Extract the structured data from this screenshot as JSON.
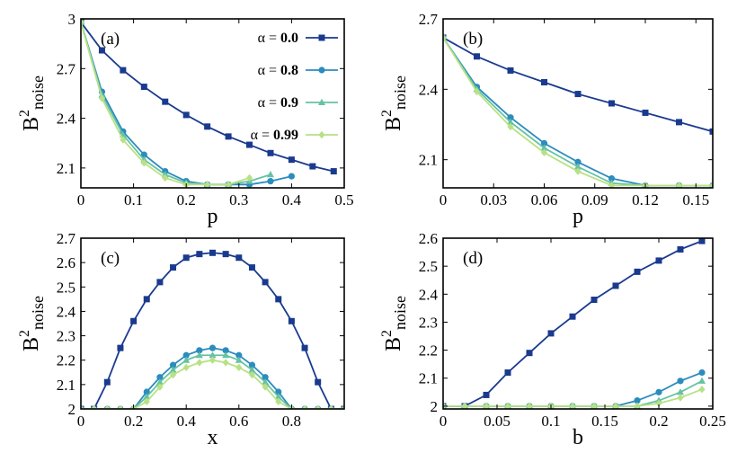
{
  "series_meta": [
    {
      "name": "α = 0.0",
      "color": "#1a3a8f",
      "marker": "square"
    },
    {
      "name": "α = 0.8",
      "color": "#2b8cbe",
      "marker": "circle"
    },
    {
      "name": "α = 0.9",
      "color": "#66c2a4",
      "marker": "triangle"
    },
    {
      "name": "α = 0.99",
      "color": "#b8e186",
      "marker": "diamond"
    }
  ],
  "chart_data": [
    {
      "type": "line",
      "panel_label": "(a)",
      "xlabel": "p",
      "ylabel": "B²noise",
      "xlim": [
        0,
        0.5
      ],
      "ylim": [
        1.98,
        3.0
      ],
      "xticks": [
        0,
        0.1,
        0.2,
        0.3,
        0.4,
        0.5
      ],
      "xticklabels": [
        "0",
        "0.1",
        "0.2",
        "0.3",
        "0.4",
        "0.5"
      ],
      "yticks": [
        2.1,
        2.4,
        2.7,
        3.0
      ],
      "yticklabels": [
        "2.1",
        "2.4",
        "2.7",
        "3"
      ],
      "legend": "top-right",
      "series": [
        {
          "name": "α = 0.0",
          "x": [
            0,
            0.04,
            0.08,
            0.12,
            0.16,
            0.2,
            0.24,
            0.28,
            0.32,
            0.36,
            0.4,
            0.44,
            0.48
          ],
          "y": [
            2.98,
            2.81,
            2.69,
            2.59,
            2.5,
            2.42,
            2.35,
            2.29,
            2.24,
            2.19,
            2.15,
            2.11,
            2.08
          ]
        },
        {
          "name": "α = 0.8",
          "x": [
            0,
            0.04,
            0.08,
            0.12,
            0.16,
            0.2,
            0.24,
            0.28,
            0.32,
            0.36,
            0.4
          ],
          "y": [
            2.98,
            2.56,
            2.32,
            2.18,
            2.08,
            2.02,
            2.0,
            2.0,
            2.0,
            2.02,
            2.05
          ]
        },
        {
          "name": "α = 0.9",
          "x": [
            0,
            0.04,
            0.08,
            0.12,
            0.16,
            0.2,
            0.24,
            0.28,
            0.32,
            0.36
          ],
          "y": [
            2.98,
            2.54,
            2.3,
            2.15,
            2.06,
            2.01,
            2.0,
            2.0,
            2.02,
            2.06
          ]
        },
        {
          "name": "α = 0.99",
          "x": [
            0,
            0.04,
            0.08,
            0.12,
            0.16,
            0.2,
            0.24,
            0.28,
            0.32
          ],
          "y": [
            2.98,
            2.52,
            2.27,
            2.13,
            2.04,
            2.0,
            2.0,
            2.0,
            2.04
          ]
        }
      ]
    },
    {
      "type": "line",
      "panel_label": "(b)",
      "xlabel": "p",
      "ylabel": "B²noise",
      "xlim": [
        0,
        0.16
      ],
      "ylim": [
        1.98,
        2.7
      ],
      "xticks": [
        0,
        0.03,
        0.06,
        0.09,
        0.12,
        0.15
      ],
      "xticklabels": [
        "0",
        "0.03",
        "0.06",
        "0.09",
        "0.12",
        "0.15"
      ],
      "yticks": [
        2.1,
        2.4,
        2.7
      ],
      "yticklabels": [
        "2.1",
        "2.4",
        "2.7"
      ],
      "series": [
        {
          "name": "α = 0.0",
          "x": [
            0,
            0.02,
            0.04,
            0.06,
            0.08,
            0.1,
            0.12,
            0.14,
            0.16
          ],
          "y": [
            2.62,
            2.54,
            2.48,
            2.43,
            2.38,
            2.34,
            2.3,
            2.26,
            2.22
          ]
        },
        {
          "name": "α = 0.8",
          "x": [
            0,
            0.02,
            0.04,
            0.06,
            0.08,
            0.1,
            0.12,
            0.14,
            0.16
          ],
          "y": [
            2.62,
            2.41,
            2.28,
            2.17,
            2.09,
            2.02,
            1.99,
            1.99,
            1.99
          ]
        },
        {
          "name": "α = 0.9",
          "x": [
            0,
            0.02,
            0.04,
            0.06,
            0.08,
            0.1,
            0.12,
            0.14,
            0.16
          ],
          "y": [
            2.62,
            2.4,
            2.26,
            2.15,
            2.07,
            2.0,
            1.99,
            1.99,
            1.99
          ]
        },
        {
          "name": "α = 0.99",
          "x": [
            0,
            0.02,
            0.04,
            0.06,
            0.08,
            0.1,
            0.12,
            0.14,
            0.16
          ],
          "y": [
            2.62,
            2.39,
            2.24,
            2.13,
            2.05,
            1.99,
            1.99,
            1.99,
            1.99
          ]
        }
      ]
    },
    {
      "type": "line",
      "panel_label": "(c)",
      "xlabel": "x",
      "ylabel": "B²noise",
      "xlim": [
        0,
        1.0
      ],
      "ylim": [
        2.0,
        2.7
      ],
      "xticks": [
        0,
        0.2,
        0.4,
        0.6,
        0.8
      ],
      "xticklabels": [
        "0",
        "0.2",
        "0.4",
        "0.6",
        "0.8"
      ],
      "yticks": [
        2.0,
        2.1,
        2.2,
        2.3,
        2.4,
        2.5,
        2.6,
        2.7
      ],
      "yticklabels": [
        "2",
        "2.1",
        "2.2",
        "2.3",
        "2.4",
        "2.5",
        "2.6",
        "2.7"
      ],
      "series": [
        {
          "name": "α = 0.0",
          "x": [
            0,
            0.05,
            0.1,
            0.15,
            0.2,
            0.25,
            0.3,
            0.35,
            0.4,
            0.45,
            0.5,
            0.55,
            0.6,
            0.65,
            0.7,
            0.75,
            0.8,
            0.85,
            0.9,
            0.95,
            1.0
          ],
          "y": [
            2.0,
            2.0,
            2.11,
            2.25,
            2.36,
            2.45,
            2.52,
            2.58,
            2.62,
            2.635,
            2.64,
            2.635,
            2.62,
            2.58,
            2.52,
            2.45,
            2.36,
            2.25,
            2.11,
            2.0,
            2.0
          ]
        },
        {
          "name": "α = 0.8",
          "x": [
            0,
            0.05,
            0.1,
            0.15,
            0.2,
            0.25,
            0.3,
            0.35,
            0.4,
            0.45,
            0.5,
            0.55,
            0.6,
            0.65,
            0.7,
            0.75,
            0.8,
            0.85,
            0.9,
            0.95,
            1.0
          ],
          "y": [
            2.0,
            2.0,
            2.0,
            2.0,
            2.0,
            2.07,
            2.13,
            2.18,
            2.22,
            2.24,
            2.25,
            2.24,
            2.22,
            2.18,
            2.13,
            2.07,
            2.0,
            2.0,
            2.0,
            2.0,
            2.0
          ]
        },
        {
          "name": "α = 0.9",
          "x": [
            0,
            0.05,
            0.1,
            0.15,
            0.2,
            0.25,
            0.3,
            0.35,
            0.4,
            0.45,
            0.5,
            0.55,
            0.6,
            0.65,
            0.7,
            0.75,
            0.8,
            0.85,
            0.9,
            0.95,
            1.0
          ],
          "y": [
            2.0,
            2.0,
            2.0,
            2.0,
            2.0,
            2.05,
            2.11,
            2.16,
            2.2,
            2.22,
            2.22,
            2.22,
            2.2,
            2.16,
            2.11,
            2.05,
            2.0,
            2.0,
            2.0,
            2.0,
            2.0
          ]
        },
        {
          "name": "α = 0.99",
          "x": [
            0,
            0.05,
            0.1,
            0.15,
            0.2,
            0.25,
            0.3,
            0.35,
            0.4,
            0.45,
            0.5,
            0.55,
            0.6,
            0.65,
            0.7,
            0.75,
            0.8,
            0.85,
            0.9,
            0.95,
            1.0
          ],
          "y": [
            2.0,
            2.0,
            2.0,
            2.0,
            2.0,
            2.03,
            2.09,
            2.14,
            2.17,
            2.19,
            2.2,
            2.19,
            2.17,
            2.14,
            2.09,
            2.03,
            2.0,
            2.0,
            2.0,
            2.0,
            2.0
          ]
        }
      ]
    },
    {
      "type": "line",
      "panel_label": "(d)",
      "xlabel": "b",
      "ylabel": "B²noise",
      "xlim": [
        0,
        0.25
      ],
      "ylim": [
        1.99,
        2.6
      ],
      "xticks": [
        0,
        0.05,
        0.1,
        0.15,
        0.2,
        0.25
      ],
      "xticklabels": [
        "0",
        "0.05",
        "0.1",
        "0.15",
        "0.2",
        "0.25"
      ],
      "yticks": [
        2.0,
        2.1,
        2.2,
        2.3,
        2.4,
        2.5,
        2.6
      ],
      "yticklabels": [
        "2",
        "2.1",
        "2.2",
        "2.3",
        "2.4",
        "2.5",
        "2.6"
      ],
      "series": [
        {
          "name": "α = 0.0",
          "x": [
            0,
            0.02,
            0.04,
            0.06,
            0.08,
            0.1,
            0.12,
            0.14,
            0.16,
            0.18,
            0.2,
            0.22,
            0.24
          ],
          "y": [
            2.0,
            2.0,
            2.04,
            2.12,
            2.19,
            2.26,
            2.32,
            2.38,
            2.43,
            2.48,
            2.52,
            2.56,
            2.59
          ]
        },
        {
          "name": "α = 0.8",
          "x": [
            0,
            0.02,
            0.04,
            0.06,
            0.08,
            0.1,
            0.12,
            0.14,
            0.16,
            0.18,
            0.2,
            0.22,
            0.24
          ],
          "y": [
            2.0,
            2.0,
            2.0,
            2.0,
            2.0,
            2.0,
            2.0,
            2.0,
            2.0,
            2.02,
            2.05,
            2.09,
            2.12
          ]
        },
        {
          "name": "α = 0.9",
          "x": [
            0,
            0.02,
            0.04,
            0.06,
            0.08,
            0.1,
            0.12,
            0.14,
            0.16,
            0.18,
            0.2,
            0.22,
            0.24
          ],
          "y": [
            2.0,
            2.0,
            2.0,
            2.0,
            2.0,
            2.0,
            2.0,
            2.0,
            2.0,
            2.0,
            2.02,
            2.05,
            2.09
          ]
        },
        {
          "name": "α = 0.99",
          "x": [
            0,
            0.02,
            0.04,
            0.06,
            0.08,
            0.1,
            0.12,
            0.14,
            0.16,
            0.18,
            0.2,
            0.22,
            0.24
          ],
          "y": [
            2.0,
            2.0,
            2.0,
            2.0,
            2.0,
            2.0,
            2.0,
            2.0,
            2.0,
            2.0,
            2.01,
            2.03,
            2.06
          ]
        }
      ]
    }
  ]
}
